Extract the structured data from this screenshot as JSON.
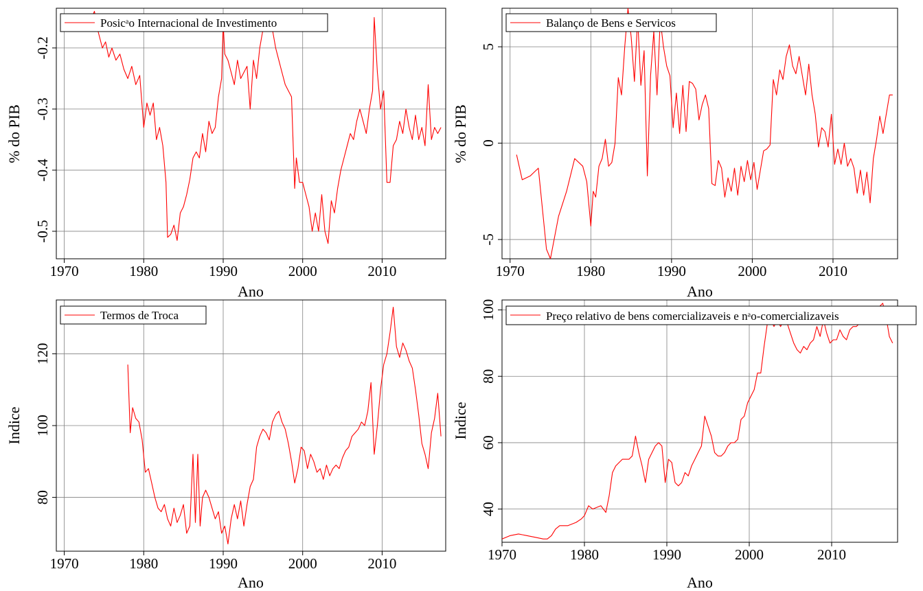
{
  "colors": {
    "series": "#ff0000",
    "grid": "#808080",
    "frame": "#000000"
  },
  "chart_data": [
    {
      "type": "line",
      "title": "",
      "xlabel": "Ano",
      "ylabel": "% do PIB",
      "legend": "Posicᵃo Internacional de Investimento",
      "legend_position": "top-left",
      "grid": true,
      "xlim": [
        1969,
        2018
      ],
      "ylim": [
        -0.545,
        -0.135
      ],
      "xticks": [
        1970,
        1980,
        1990,
        2000,
        2010
      ],
      "xtick_labels": [
        "1970",
        "1980",
        "1990",
        "2000",
        "2010"
      ],
      "yticks": [
        -0.5,
        -0.4,
        -0.3,
        -0.2
      ],
      "ytick_labels": [
        "-0.5",
        "-0.4",
        "-0.3",
        "-0.2"
      ],
      "series": [
        {
          "x": [
            1970.0,
            1971.5,
            1973.0,
            1973.8,
            1974.3,
            1974.8,
            1975.2,
            1975.6,
            1976.0,
            1976.5,
            1977.0,
            1977.5,
            1978.0,
            1978.5,
            1979.0,
            1979.5,
            1980.0,
            1980.4,
            1980.8,
            1981.2,
            1981.6,
            1982.0,
            1982.4,
            1982.8,
            1983.0,
            1983.4,
            1983.8,
            1984.2,
            1984.6,
            1985.0,
            1985.4,
            1985.8,
            1986.2,
            1986.6,
            1987.0,
            1987.4,
            1987.8,
            1988.2,
            1988.6,
            1989.0,
            1989.4,
            1989.8,
            1990.0,
            1990.2,
            1990.6,
            1991.0,
            1991.4,
            1991.8,
            1992.2,
            1992.6,
            1993.0,
            1993.4,
            1993.8,
            1994.2,
            1994.6,
            1995.0,
            1995.4,
            1995.8,
            1996.2,
            1996.6,
            1997.0,
            1997.4,
            1997.8,
            1998.2,
            1998.6,
            1999.0,
            1999.2,
            1999.6,
            2000.0,
            2000.4,
            2000.8,
            2001.2,
            2001.6,
            2002.0,
            2002.4,
            2002.8,
            2003.2,
            2003.6,
            2004.0,
            2004.4,
            2004.8,
            2005.2,
            2005.6,
            2006.0,
            2006.4,
            2006.8,
            2007.2,
            2007.6,
            2008.0,
            2008.4,
            2008.8,
            2009.0,
            2009.4,
            2009.8,
            2010.2,
            2010.6,
            2011.0,
            2011.4,
            2011.8,
            2012.2,
            2012.6,
            2013.0,
            2013.4,
            2013.8,
            2014.2,
            2014.6,
            2015.0,
            2015.4,
            2015.8,
            2016.2,
            2016.6,
            2017.0,
            2017.4
          ],
          "y": [
            -0.163,
            -0.165,
            -0.164,
            -0.14,
            -0.175,
            -0.2,
            -0.19,
            -0.215,
            -0.2,
            -0.22,
            -0.21,
            -0.235,
            -0.25,
            -0.23,
            -0.26,
            -0.245,
            -0.33,
            -0.29,
            -0.31,
            -0.29,
            -0.35,
            -0.33,
            -0.36,
            -0.42,
            -0.51,
            -0.505,
            -0.49,
            -0.515,
            -0.47,
            -0.46,
            -0.44,
            -0.415,
            -0.38,
            -0.37,
            -0.38,
            -0.34,
            -0.37,
            -0.32,
            -0.34,
            -0.33,
            -0.28,
            -0.25,
            -0.16,
            -0.21,
            -0.22,
            -0.24,
            -0.26,
            -0.22,
            -0.25,
            -0.24,
            -0.23,
            -0.3,
            -0.22,
            -0.25,
            -0.2,
            -0.17,
            -0.165,
            -0.16,
            -0.17,
            -0.2,
            -0.22,
            -0.24,
            -0.26,
            -0.27,
            -0.28,
            -0.43,
            -0.38,
            -0.42,
            -0.42,
            -0.44,
            -0.46,
            -0.5,
            -0.47,
            -0.5,
            -0.44,
            -0.5,
            -0.52,
            -0.45,
            -0.47,
            -0.43,
            -0.4,
            -0.38,
            -0.36,
            -0.34,
            -0.35,
            -0.32,
            -0.3,
            -0.32,
            -0.34,
            -0.3,
            -0.27,
            -0.15,
            -0.24,
            -0.3,
            -0.27,
            -0.42,
            -0.42,
            -0.36,
            -0.35,
            -0.32,
            -0.34,
            -0.3,
            -0.33,
            -0.35,
            -0.31,
            -0.35,
            -0.33,
            -0.36,
            -0.26,
            -0.35,
            -0.33,
            -0.34,
            -0.33
          ]
        }
      ]
    },
    {
      "type": "line",
      "title": "",
      "xlabel": "Ano",
      "ylabel": "% do PIB",
      "legend": "Balanço de Bens e Servicos",
      "legend_position": "top-left",
      "grid": true,
      "xlim": [
        1969,
        2018
      ],
      "ylim": [
        -6,
        7
      ],
      "xticks": [
        1970,
        1980,
        1990,
        2000,
        2010
      ],
      "xtick_labels": [
        "1970",
        "1980",
        "1990",
        "2000",
        "2010"
      ],
      "yticks": [
        -5,
        0,
        5
      ],
      "ytick_labels": [
        "-5",
        "0",
        "5"
      ],
      "series": [
        {
          "x": [
            1970.8,
            1971.5,
            1972.5,
            1973.5,
            1974.5,
            1975.0,
            1976.0,
            1977.0,
            1978.0,
            1979.0,
            1979.5,
            1980.0,
            1980.3,
            1980.6,
            1981.0,
            1981.4,
            1981.8,
            1982.2,
            1982.6,
            1983.0,
            1983.4,
            1983.8,
            1984.2,
            1984.6,
            1985.0,
            1985.4,
            1985.8,
            1986.2,
            1986.6,
            1987.0,
            1987.4,
            1987.8,
            1988.2,
            1988.6,
            1989.0,
            1989.4,
            1989.8,
            1990.2,
            1990.6,
            1991.0,
            1991.4,
            1991.8,
            1992.2,
            1992.6,
            1993.0,
            1993.4,
            1993.8,
            1994.2,
            1994.6,
            1995.0,
            1995.4,
            1995.8,
            1996.2,
            1996.6,
            1997.0,
            1997.4,
            1997.8,
            1998.2,
            1998.6,
            1999.0,
            1999.4,
            1999.8,
            2000.2,
            2000.6,
            2001.0,
            2001.4,
            2001.8,
            2002.2,
            2002.6,
            2003.0,
            2003.4,
            2003.8,
            2004.2,
            2004.6,
            2005.0,
            2005.4,
            2005.8,
            2006.2,
            2006.6,
            2007.0,
            2007.4,
            2007.8,
            2008.2,
            2008.6,
            2009.0,
            2009.4,
            2009.8,
            2010.2,
            2010.6,
            2011.0,
            2011.4,
            2011.8,
            2012.2,
            2012.6,
            2013.0,
            2013.4,
            2013.8,
            2014.2,
            2014.6,
            2015.0,
            2015.4,
            2015.8,
            2016.2,
            2016.6,
            2017.0,
            2017.4
          ],
          "y": [
            -0.6,
            -1.9,
            -1.7,
            -1.3,
            -5.5,
            -6.0,
            -3.8,
            -2.5,
            -0.8,
            -1.2,
            -2.0,
            -4.3,
            -2.5,
            -2.8,
            -1.2,
            -0.8,
            0.2,
            -1.2,
            -1.0,
            0.0,
            3.4,
            2.5,
            5.0,
            7.0,
            5.5,
            3.2,
            6.5,
            3.0,
            4.8,
            -1.7,
            3.5,
            5.8,
            2.5,
            6.4,
            5.0,
            4.0,
            3.5,
            0.8,
            2.6,
            0.5,
            3.0,
            0.6,
            3.2,
            3.1,
            2.8,
            1.2,
            2.0,
            2.5,
            1.8,
            -2.1,
            -2.2,
            -0.9,
            -1.3,
            -2.8,
            -1.8,
            -2.5,
            -1.3,
            -2.7,
            -1.2,
            -2.0,
            -0.9,
            -1.9,
            -1.0,
            -2.4,
            -1.4,
            -0.4,
            -0.3,
            -0.1,
            3.3,
            2.5,
            3.8,
            3.3,
            4.5,
            5.1,
            4.0,
            3.6,
            4.5,
            3.5,
            2.5,
            4.1,
            2.5,
            1.5,
            -0.2,
            0.8,
            0.6,
            -0.2,
            1.5,
            -1.1,
            -0.3,
            -1.1,
            0.0,
            -1.2,
            -0.8,
            -1.3,
            -2.6,
            -1.4,
            -2.7,
            -1.5,
            -3.1,
            -0.8,
            0.2,
            1.4,
            0.5,
            1.5,
            2.5,
            2.5
          ]
        }
      ]
    },
    {
      "type": "line",
      "title": "",
      "xlabel": "Ano",
      "ylabel": "Indice",
      "legend": "Termos de Troca",
      "legend_position": "top-left",
      "grid": true,
      "xlim": [
        1969,
        2018
      ],
      "ylim": [
        65,
        135
      ],
      "xticks": [
        1970,
        1980,
        1990,
        2000,
        2010
      ],
      "xtick_labels": [
        "1970",
        "1980",
        "1990",
        "2000",
        "2010"
      ],
      "yticks": [
        80,
        100,
        120
      ],
      "ytick_labels": [
        "80",
        "100",
        "120"
      ],
      "series": [
        {
          "x": [
            1978.0,
            1978.3,
            1978.6,
            1979.0,
            1979.4,
            1979.8,
            1980.2,
            1980.6,
            1981.0,
            1981.4,
            1981.8,
            1982.2,
            1982.6,
            1983.0,
            1983.4,
            1983.8,
            1984.2,
            1984.6,
            1985.0,
            1985.4,
            1985.8,
            1986.2,
            1986.5,
            1986.8,
            1987.1,
            1987.4,
            1987.8,
            1988.2,
            1988.6,
            1989.0,
            1989.4,
            1989.8,
            1990.2,
            1990.6,
            1991.0,
            1991.4,
            1991.8,
            1992.2,
            1992.6,
            1993.0,
            1993.4,
            1993.8,
            1994.2,
            1994.6,
            1995.0,
            1995.4,
            1995.8,
            1996.2,
            1996.6,
            1997.0,
            1997.4,
            1997.8,
            1998.2,
            1998.6,
            1999.0,
            1999.4,
            1999.8,
            2000.2,
            2000.6,
            2001.0,
            2001.4,
            2001.8,
            2002.2,
            2002.6,
            2003.0,
            2003.4,
            2003.8,
            2004.2,
            2004.6,
            2005.0,
            2005.4,
            2005.8,
            2006.2,
            2006.6,
            2007.0,
            2007.4,
            2007.8,
            2008.2,
            2008.6,
            2009.0,
            2009.4,
            2009.8,
            2010.2,
            2010.6,
            2011.0,
            2011.4,
            2011.8,
            2012.2,
            2012.6,
            2013.0,
            2013.4,
            2013.8,
            2014.2,
            2014.6,
            2015.0,
            2015.4,
            2015.8,
            2016.2,
            2016.6,
            2017.0,
            2017.4
          ],
          "y": [
            117,
            98,
            105,
            102,
            101,
            96,
            87,
            88,
            84,
            80,
            77,
            76,
            78,
            74,
            72,
            77,
            73,
            75,
            78,
            70,
            72,
            92,
            73,
            92,
            72,
            80,
            82,
            80,
            77,
            74,
            76,
            70,
            72,
            67,
            74,
            78,
            74,
            79,
            72,
            78,
            83,
            85,
            94,
            97,
            99,
            98,
            96,
            101,
            103,
            104,
            101,
            99,
            95,
            90,
            84,
            88,
            94,
            93,
            88,
            92,
            90,
            87,
            88,
            85,
            89,
            86,
            88,
            89,
            88,
            91,
            93,
            94,
            97,
            98,
            99,
            101,
            100,
            104,
            112,
            92,
            100,
            110,
            117,
            120,
            126,
            133,
            122,
            119,
            123,
            121,
            118,
            116,
            110,
            103,
            95,
            92,
            88,
            98,
            102,
            109,
            97
          ]
        }
      ]
    },
    {
      "type": "line",
      "title": "",
      "xlabel": "Ano",
      "ylabel": "Indice",
      "legend": "Preço relativo de bens comercializaveis e nᵃo-comercializaveis",
      "legend_position": "top",
      "grid": true,
      "xlim": [
        1970,
        2018
      ],
      "ylim": [
        30,
        103
      ],
      "xticks": [
        1970,
        1980,
        1990,
        2000,
        2010
      ],
      "xtick_labels": [
        "1970",
        "1980",
        "1990",
        "2000",
        "2010"
      ],
      "yticks": [
        40,
        60,
        80,
        100
      ],
      "ytick_labels": [
        "40",
        "60",
        "80",
        "100"
      ],
      "series": [
        {
          "x": [
            1970.0,
            1971.0,
            1972.0,
            1973.0,
            1974.0,
            1975.0,
            1975.5,
            1976.0,
            1976.5,
            1977.0,
            1978.0,
            1979.0,
            1979.6,
            1980.0,
            1980.5,
            1981.0,
            1982.0,
            1982.6,
            1983.0,
            1983.4,
            1983.8,
            1984.2,
            1984.6,
            1985.0,
            1985.4,
            1985.8,
            1986.2,
            1986.6,
            1987.0,
            1987.4,
            1987.8,
            1988.2,
            1988.6,
            1989.0,
            1989.4,
            1989.8,
            1990.2,
            1990.6,
            1991.0,
            1991.4,
            1991.8,
            1992.2,
            1992.6,
            1993.0,
            1993.4,
            1993.8,
            1994.2,
            1994.6,
            1995.0,
            1995.4,
            1995.8,
            1996.2,
            1996.6,
            1997.0,
            1997.4,
            1997.8,
            1998.2,
            1998.6,
            1999.0,
            1999.4,
            1999.8,
            2000.2,
            2000.6,
            2001.0,
            2001.4,
            2001.8,
            2002.2,
            2002.6,
            2003.0,
            2003.4,
            2003.8,
            2004.2,
            2004.6,
            2005.0,
            2005.4,
            2005.8,
            2006.2,
            2006.6,
            2007.0,
            2007.4,
            2007.8,
            2008.2,
            2008.6,
            2009.0,
            2009.4,
            2009.8,
            2010.2,
            2010.6,
            2011.0,
            2011.4,
            2011.8,
            2012.2,
            2012.6,
            2013.0,
            2013.4,
            2013.8,
            2014.2,
            2014.6,
            2015.0,
            2015.4,
            2015.8,
            2016.2,
            2016.6,
            2017.0,
            2017.4
          ],
          "y": [
            31,
            32,
            32.5,
            32,
            31.5,
            31,
            31,
            32,
            34,
            35,
            35,
            36,
            37,
            38,
            41,
            40,
            41,
            39,
            44,
            51,
            53,
            54,
            55,
            55,
            55,
            56,
            62,
            57,
            53,
            48,
            55,
            57,
            59,
            60,
            59,
            48,
            55,
            54,
            48,
            47,
            48,
            51,
            50,
            53,
            55,
            57,
            59,
            68,
            65,
            62,
            57,
            56,
            56,
            57,
            59,
            60,
            60,
            61,
            67,
            68,
            72,
            74,
            76,
            81,
            81,
            89,
            96,
            97,
            95,
            97,
            95,
            97,
            96,
            93,
            90,
            88,
            87,
            89,
            88,
            90,
            91,
            95,
            92,
            97,
            93,
            90,
            91,
            91,
            94,
            92,
            91,
            94,
            95,
            95,
            96,
            98,
            97,
            96,
            99,
            100,
            101,
            102,
            98,
            92,
            90
          ]
        }
      ]
    }
  ]
}
